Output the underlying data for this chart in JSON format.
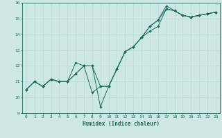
{
  "title": "",
  "xlabel": "Humidex (Indice chaleur)",
  "ylabel": "",
  "xlim": [
    -0.5,
    23.5
  ],
  "ylim": [
    9,
    16
  ],
  "xticks": [
    0,
    1,
    2,
    3,
    4,
    5,
    6,
    7,
    8,
    9,
    10,
    11,
    12,
    13,
    14,
    15,
    16,
    17,
    18,
    19,
    20,
    21,
    22,
    23
  ],
  "yticks": [
    9,
    10,
    11,
    12,
    13,
    14,
    15,
    16
  ],
  "background_color": "#cde8e4",
  "grid_color": "#b8d8d4",
  "line_color": "#1a6b5a",
  "lines": [
    {
      "x": [
        0,
        1,
        2,
        3,
        4,
        5,
        6,
        7,
        8,
        9,
        10,
        11,
        12,
        13,
        14,
        15,
        16,
        17,
        18,
        19,
        20,
        21,
        22,
        23
      ],
      "y": [
        10.5,
        11.0,
        10.7,
        11.15,
        11.0,
        11.0,
        12.2,
        12.0,
        12.0,
        10.7,
        10.7,
        11.8,
        12.9,
        13.2,
        13.8,
        14.5,
        14.9,
        15.6,
        15.5,
        15.2,
        15.1,
        15.2,
        15.3,
        15.4
      ]
    },
    {
      "x": [
        0,
        1,
        2,
        3,
        4,
        5,
        6,
        7,
        8,
        9,
        10,
        11,
        12,
        13,
        14,
        15,
        16,
        17,
        18,
        19,
        20,
        21,
        22,
        23
      ],
      "y": [
        10.5,
        11.0,
        10.7,
        11.15,
        11.0,
        11.0,
        11.5,
        12.0,
        12.0,
        9.4,
        10.7,
        11.8,
        12.9,
        13.2,
        13.8,
        14.5,
        14.9,
        15.8,
        15.5,
        15.2,
        15.1,
        15.2,
        15.3,
        15.4
      ]
    },
    {
      "x": [
        0,
        1,
        2,
        3,
        4,
        5,
        6,
        7,
        8,
        9,
        10,
        11,
        12,
        13,
        14,
        15,
        16,
        17,
        18,
        19,
        20,
        21,
        22,
        23
      ],
      "y": [
        10.5,
        11.0,
        10.7,
        11.15,
        11.0,
        11.0,
        11.5,
        12.0,
        10.3,
        10.7,
        10.7,
        11.8,
        12.9,
        13.2,
        13.8,
        14.2,
        14.5,
        15.6,
        15.5,
        15.2,
        15.1,
        15.2,
        15.3,
        15.4
      ]
    }
  ],
  "marker": "D",
  "markersize": 1.8,
  "linewidth": 0.7,
  "tick_fontsize": 4.5,
  "xlabel_fontsize": 5.5
}
